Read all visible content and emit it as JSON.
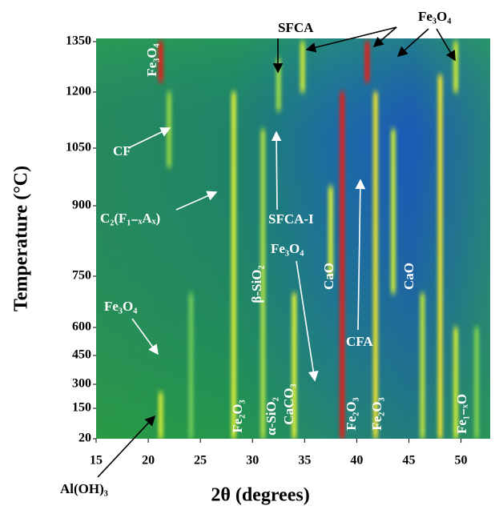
{
  "chart_data": {
    "type": "heatmap",
    "xlabel": "2θ (degrees)",
    "ylabel": "Temperature (°C)",
    "xlim": [
      15,
      52.8
    ],
    "xticks": [
      15,
      20,
      25,
      30,
      35,
      40,
      45,
      50
    ],
    "ylim": [
      20,
      1350
    ],
    "yticks": [
      20,
      150,
      300,
      450,
      600,
      750,
      900,
      1050,
      1200,
      1350
    ],
    "peaks": [
      {
        "x": 21.2,
        "t": [
          1230,
          1350
        ],
        "color": "#e0201a"
      },
      {
        "x": 21.2,
        "t": [
          20,
          250
        ],
        "color": "#c8e83a"
      },
      {
        "x": 22,
        "t": [
          1000,
          1200
        ],
        "color": "#8fd64a"
      },
      {
        "x": 24.1,
        "t": [
          20,
          700
        ],
        "color": "#6ac85a"
      },
      {
        "x": 28.2,
        "t": [
          20,
          1200
        ],
        "color": "#d8ec3a"
      },
      {
        "x": 31,
        "t": [
          20,
          1100
        ],
        "color": "#a8de48"
      },
      {
        "x": 34,
        "t": [
          20,
          700
        ],
        "color": "#d8ec3a"
      },
      {
        "x": 34.8,
        "t": [
          1200,
          1350
        ],
        "color": "#c8e83a"
      },
      {
        "x": 32.5,
        "t": [
          1150,
          1300
        ],
        "color": "#9cdc4a"
      },
      {
        "x": 37.5,
        "t": [
          750,
          950
        ],
        "color": "#d8ec3a"
      },
      {
        "x": 38.6,
        "t": [
          20,
          1200
        ],
        "color": "#e0201a"
      },
      {
        "x": 41,
        "t": [
          1230,
          1350
        ],
        "color": "#e0201a"
      },
      {
        "x": 41.8,
        "t": [
          20,
          1200
        ],
        "color": "#e8e030"
      },
      {
        "x": 43.5,
        "t": [
          700,
          1100
        ],
        "color": "#c8e83a"
      },
      {
        "x": 46.3,
        "t": [
          20,
          700
        ],
        "color": "#b8e240"
      },
      {
        "x": 48,
        "t": [
          20,
          1250
        ],
        "color": "#e8e030"
      },
      {
        "x": 49.5,
        "t": [
          20,
          600
        ],
        "color": "#c8e83a"
      },
      {
        "x": 49.5,
        "t": [
          1200,
          1350
        ],
        "color": "#c8e83a"
      },
      {
        "x": 51.5,
        "t": [
          20,
          600
        ],
        "color": "#7cd050"
      }
    ],
    "annotations": [
      "Fe₃O₄",
      "SFCA",
      "Fe₃O₄",
      "CF",
      "C₂(F₁₋ₓAₓ)",
      "SFCA-I",
      "Fe₃O₄",
      "β-SiO₂",
      "CaO",
      "CaO",
      "Fe₃O₄",
      "CFA",
      "Fe₂O₃",
      "α-SiO₂",
      "CaCO₃",
      "Fe₂O₃",
      "Fe₂O₃",
      "Fe₁₋ₓO",
      "Al(OH)₃"
    ]
  }
}
